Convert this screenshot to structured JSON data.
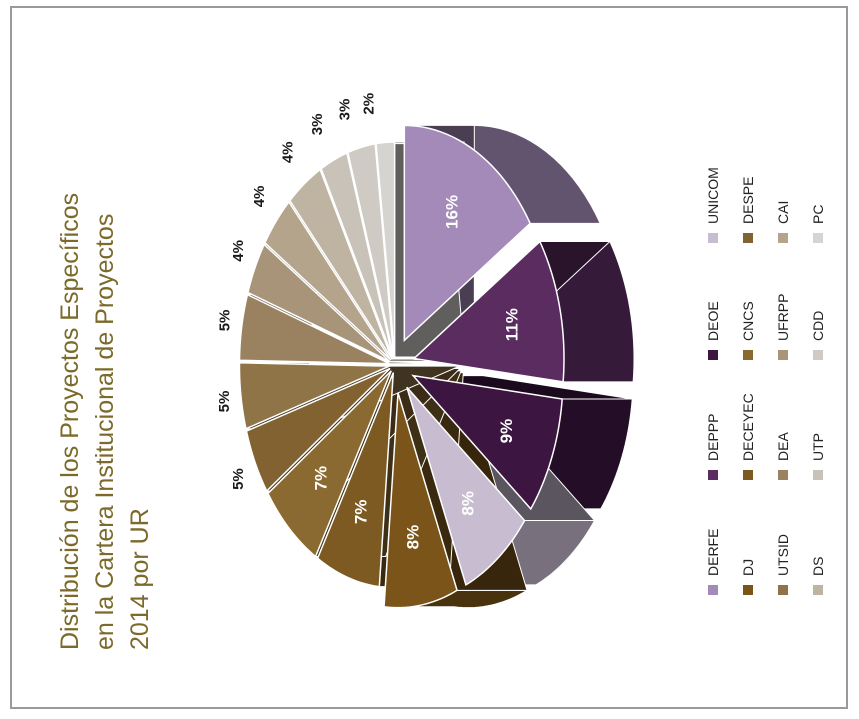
{
  "chart_data": {
    "type": "pie",
    "title_lines": [
      "Distribución de los Proyectos Específicos",
      "en la Cartera Institucional de Proyectos",
      "2014 por UR"
    ],
    "slices": [
      {
        "label": "DERFE",
        "value": 16,
        "label_text": "16%",
        "color": "#a48ab8"
      },
      {
        "label": "DEPPP",
        "value": 11,
        "label_text": "11%",
        "color": "#5a2c60"
      },
      {
        "label": "DEOE",
        "value": 9,
        "label_text": "9%",
        "color": "#3c1540"
      },
      {
        "label": "UNICOM",
        "value": 8,
        "label_text": "8%",
        "color": "#c8bcd0"
      },
      {
        "label": "DJ",
        "value": 8,
        "label_text": "8%",
        "color": "#7a5418"
      },
      {
        "label": "DECEYEC",
        "value": 7,
        "label_text": "7%",
        "color": "#7c5a22"
      },
      {
        "label": "CNCS",
        "value": 7,
        "label_text": "7%",
        "color": "#8a6a30"
      },
      {
        "label": "DESPE",
        "value": 5,
        "label_text": "5%",
        "color": "#836232"
      },
      {
        "label": "UTSID",
        "value": 5,
        "label_text": "5%",
        "color": "#8f7448"
      },
      {
        "label": "DEA",
        "value": 5,
        "label_text": "5%",
        "color": "#9a8260"
      },
      {
        "label": "UFRPP",
        "value": 4,
        "label_text": "4%",
        "color": "#a89478"
      },
      {
        "label": "CAI",
        "value": 4,
        "label_text": "4%",
        "color": "#b4a48c"
      },
      {
        "label": "DS",
        "value": 4,
        "label_text": "4%",
        "color": "#bfb4a2"
      },
      {
        "label": "UTP",
        "value": 3,
        "label_text": "3%",
        "color": "#c8c2b8"
      },
      {
        "label": "CDD",
        "value": 3,
        "label_text": "3%",
        "color": "#cfcbc4"
      },
      {
        "label": "PC",
        "value": 2,
        "label_text": "2%",
        "color": "#d6d4d0"
      }
    ],
    "legend": [
      {
        "label": "DERFE",
        "color": "#a48ab8"
      },
      {
        "label": "DEPPP",
        "color": "#5a2c60"
      },
      {
        "label": "DEOE",
        "color": "#3c1540"
      },
      {
        "label": "UNICOM",
        "color": "#c8bcd0"
      },
      {
        "label": "DJ",
        "color": "#7a5418"
      },
      {
        "label": "DECEYEC",
        "color": "#7c5a22"
      },
      {
        "label": "CNCS",
        "color": "#8a6a30"
      },
      {
        "label": "DESPE",
        "color": "#836232"
      },
      {
        "label": "UTSID",
        "color": "#8f7448"
      },
      {
        "label": "DEA",
        "color": "#9a8260"
      },
      {
        "label": "UFRPP",
        "color": "#a89478"
      },
      {
        "label": "CAI",
        "color": "#b4a48c"
      },
      {
        "label": "DS",
        "color": "#bfb4a2"
      },
      {
        "label": "UTP",
        "color": "#c8c2b8"
      },
      {
        "label": "CDD",
        "color": "#cfcbc4"
      },
      {
        "label": "PC",
        "color": "#d6d4d0"
      }
    ],
    "legend_placement": "bottom",
    "orientation": "rotated 90 degrees counter-clockwise",
    "style": "3D exploded pie"
  }
}
